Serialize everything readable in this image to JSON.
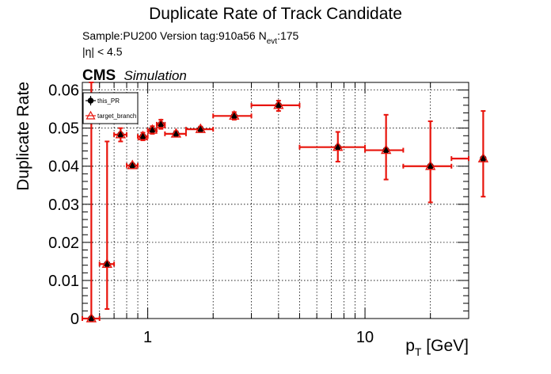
{
  "title": "Duplicate Rate of Track Candidate",
  "sample_line": "Sample:PU200   Version tag:910a56  N",
  "nevt_sub": "evt",
  "nevt_value": ":175",
  "eta_line": "|η| < 4.5",
  "cms_label": "CMS",
  "simulation_label": "Simulation",
  "colors": {
    "series_this_pr": "#000000",
    "series_target": "#e8140c",
    "grid": "#000000"
  },
  "chart_data": {
    "type": "scatter",
    "x_scale": "log",
    "xlim": [
      0.5,
      30
    ],
    "ylim": [
      0,
      0.062
    ],
    "xlabel_main": "p",
    "xlabel_sub": "T",
    "xlabel_rest": " [GeV]",
    "ylabel": "Duplicate Rate",
    "grid": true,
    "legend_position": "top-left",
    "xticks": [
      {
        "value": 1,
        "label": "1"
      },
      {
        "value": 10,
        "label": "10"
      }
    ],
    "yticks": [
      {
        "value": 0,
        "label": "0"
      },
      {
        "value": 0.01,
        "label": "0.01"
      },
      {
        "value": 0.02,
        "label": "0.02"
      },
      {
        "value": 0.03,
        "label": "0.03"
      },
      {
        "value": 0.04,
        "label": "0.04"
      },
      {
        "value": 0.05,
        "label": "0.05"
      },
      {
        "value": 0.06,
        "label": "0.06"
      }
    ],
    "series": [
      {
        "name": "this_PR",
        "marker": "circle",
        "color": "#000000",
        "points": [
          {
            "x": 0.55,
            "xlo": 0.5,
            "xhi": 0.6,
            "y": 0.0,
            "ylo": 0.0,
            "yhi": 0.062
          },
          {
            "x": 0.65,
            "xlo": 0.6,
            "xhi": 0.7,
            "y": 0.0143,
            "ylo": 0.0025,
            "yhi": 0.0465
          },
          {
            "x": 0.75,
            "xlo": 0.7,
            "xhi": 0.8,
            "y": 0.0483,
            "ylo": 0.0465,
            "yhi": 0.05
          },
          {
            "x": 0.85,
            "xlo": 0.8,
            "xhi": 0.9,
            "y": 0.0402,
            "ylo": 0.0397,
            "yhi": 0.0407
          },
          {
            "x": 0.95,
            "xlo": 0.9,
            "xhi": 1.0,
            "y": 0.0478,
            "ylo": 0.0468,
            "yhi": 0.0488
          },
          {
            "x": 1.05,
            "xlo": 1.0,
            "xhi": 1.1,
            "y": 0.0495,
            "ylo": 0.0485,
            "yhi": 0.0505
          },
          {
            "x": 1.15,
            "xlo": 1.1,
            "xhi": 1.2,
            "y": 0.051,
            "ylo": 0.0498,
            "yhi": 0.0522
          },
          {
            "x": 1.35,
            "xlo": 1.2,
            "xhi": 1.5,
            "y": 0.0485,
            "ylo": 0.0478,
            "yhi": 0.0492
          },
          {
            "x": 1.75,
            "xlo": 1.5,
            "xhi": 2.0,
            "y": 0.0497,
            "ylo": 0.049,
            "yhi": 0.0504
          },
          {
            "x": 2.5,
            "xlo": 2.0,
            "xhi": 3.0,
            "y": 0.0532,
            "ylo": 0.0522,
            "yhi": 0.0542
          },
          {
            "x": 4.0,
            "xlo": 3.0,
            "xhi": 5.0,
            "y": 0.056,
            "ylo": 0.0545,
            "yhi": 0.0572
          },
          {
            "x": 7.5,
            "xlo": 5.0,
            "xhi": 10.0,
            "y": 0.045,
            "ylo": 0.0412,
            "yhi": 0.049
          },
          {
            "x": 12.5,
            "xlo": 10.0,
            "xhi": 15.0,
            "y": 0.0442,
            "ylo": 0.0365,
            "yhi": 0.0535
          },
          {
            "x": 20.0,
            "xlo": 15.0,
            "xhi": 25.0,
            "y": 0.04,
            "ylo": 0.0305,
            "yhi": 0.0518
          },
          {
            "x": 35.0,
            "xlo": 25.0,
            "xhi": 45.0,
            "y": 0.042,
            "ylo": 0.032,
            "yhi": 0.0545
          }
        ]
      },
      {
        "name": "target_branch",
        "marker": "triangle-open",
        "color": "#e8140c"
      }
    ]
  }
}
